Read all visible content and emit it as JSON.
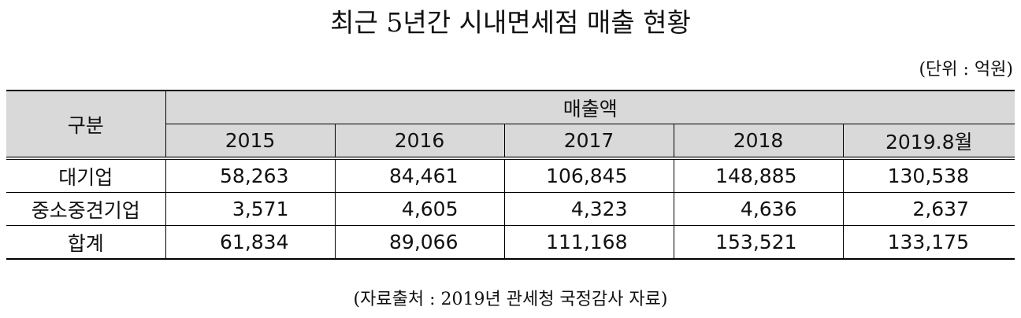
{
  "header": {
    "title": "최근 5년간 시내면세점 매출 현황",
    "unit": "(단위 : 억원)"
  },
  "table": {
    "group_label": "구분",
    "value_label": "매출액",
    "years": [
      "2015",
      "2016",
      "2017",
      "2018",
      "2019.8월"
    ],
    "rows": [
      [
        "대기업",
        "58,263",
        "84,461",
        "106,845",
        "148,885",
        "130,538"
      ],
      [
        "중소중견기업",
        "3,571",
        "4,605",
        "4,323",
        "4,636",
        "2,637"
      ],
      [
        "합계",
        "61,834",
        "89,066",
        "111,168",
        "153,521",
        "133,175"
      ]
    ]
  },
  "source": "(자료출처 : 2019년 관세청 국정감사 자료)"
}
